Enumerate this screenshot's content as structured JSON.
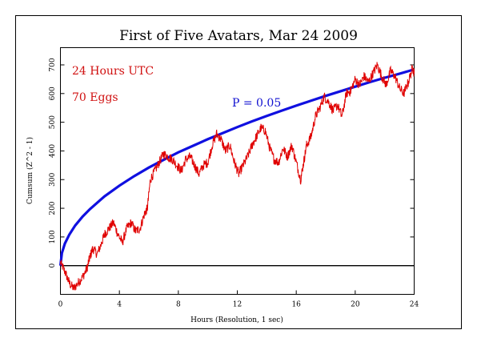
{
  "chart_data": {
    "type": "line",
    "title": "First of Five Avatars, Mar 24 2009",
    "xlabel": "Hours (Resolution, 1 sec)",
    "ylabel": "Cumsum (Z^2 - 1)",
    "xlim": [
      0,
      24
    ],
    "ylim": [
      -100,
      760
    ],
    "x_ticks": [
      0,
      4,
      8,
      12,
      16,
      20,
      24
    ],
    "y_ticks": [
      0,
      100,
      200,
      300,
      400,
      500,
      600,
      700
    ],
    "annotations": {
      "time_label": "24 Hours UTC",
      "eggs_label": "70 Eggs",
      "p_label": "P = 0.05"
    },
    "colors": {
      "cumsum": "#e00000",
      "probability_envelope": "#1010e0",
      "zero_line": "#000000",
      "text_red": "#d01010",
      "text_blue": "#1010d0"
    },
    "series": [
      {
        "role": "cumulative deviation",
        "x": [
          0,
          0.3,
          0.6,
          0.9,
          1.2,
          1.5,
          1.8,
          2.0,
          2.2,
          2.5,
          2.8,
          3.0,
          3.3,
          3.6,
          3.9,
          4.2,
          4.5,
          4.8,
          5.1,
          5.4,
          5.7,
          5.9,
          6.1,
          6.4,
          6.7,
          7.0,
          7.3,
          7.6,
          7.9,
          8.2,
          8.5,
          8.8,
          9.1,
          9.4,
          9.7,
          10.0,
          10.3,
          10.6,
          10.9,
          11.2,
          11.5,
          11.8,
          12.1,
          12.4,
          12.7,
          13.0,
          13.3,
          13.6,
          13.9,
          14.2,
          14.5,
          14.8,
          15.1,
          15.4,
          15.7,
          16.0,
          16.3,
          16.5,
          16.7,
          17.0,
          17.3,
          17.6,
          17.9,
          18.2,
          18.5,
          18.8,
          19.1,
          19.4,
          19.7,
          20.0,
          20.3,
          20.6,
          20.9,
          21.2,
          21.5,
          21.8,
          22.1,
          22.4,
          22.7,
          23.0,
          23.3,
          23.6,
          23.9,
          24.0
        ],
        "y": [
          10,
          -20,
          -60,
          -80,
          -60,
          -40,
          -10,
          30,
          60,
          40,
          80,
          110,
          130,
          150,
          110,
          80,
          130,
          150,
          120,
          130,
          180,
          200,
          300,
          330,
          360,
          390,
          380,
          370,
          350,
          330,
          370,
          380,
          350,
          320,
          350,
          360,
          420,
          460,
          440,
          400,
          420,
          360,
          320,
          350,
          380,
          420,
          450,
          480,
          470,
          410,
          370,
          360,
          410,
          380,
          420,
          360,
          300,
          360,
          420,
          450,
          520,
          550,
          590,
          570,
          540,
          560,
          520,
          600,
          610,
          650,
          630,
          660,
          640,
          670,
          700,
          660,
          630,
          680,
          660,
          620,
          600,
          640,
          690,
          670
        ]
      },
      {
        "role": "probability envelope",
        "name": "P = 0.05",
        "x": [
          0,
          0.1,
          0.3,
          0.6,
          1,
          1.5,
          2,
          3,
          4,
          5,
          6,
          7,
          8,
          9,
          10,
          11,
          12,
          13,
          14,
          15,
          16,
          17,
          18,
          19,
          20,
          21,
          22,
          23,
          24
        ],
        "y": [
          0,
          44,
          77,
          108,
          140,
          171,
          197,
          242,
          279,
          312,
          342,
          369,
          395,
          418,
          441,
          462,
          483,
          503,
          522,
          540,
          558,
          575,
          592,
          608,
          624,
          640,
          655,
          669,
          684
        ]
      }
    ]
  }
}
